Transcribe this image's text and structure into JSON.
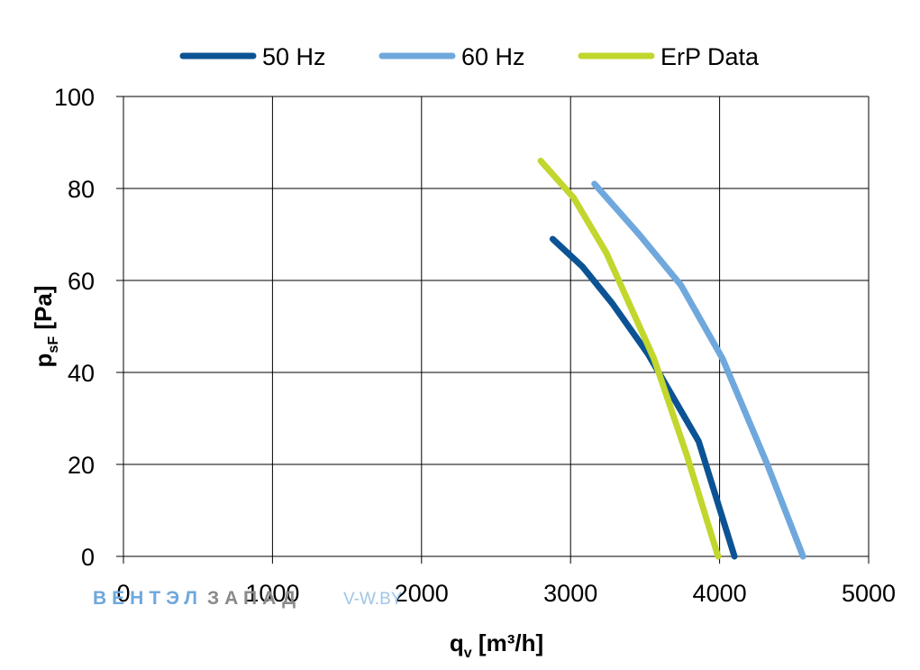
{
  "chart_data": {
    "type": "line",
    "title": "",
    "xlabel": {
      "main": "q",
      "sub": "v",
      "rest": " [m³/h]"
    },
    "ylabel": {
      "main": "p",
      "sub": "sF",
      "rest": " [Pa]"
    },
    "xlim": [
      0,
      5000
    ],
    "ylim": [
      0,
      100
    ],
    "xticks": [
      "0",
      "1000",
      "2000",
      "3000",
      "4000",
      "5000"
    ],
    "yticks": [
      "0",
      "20",
      "40",
      "60",
      "80",
      "100"
    ],
    "grid": true,
    "legend_position": "top",
    "series": [
      {
        "name": "50 Hz",
        "color": "#0b5394",
        "x": [
          2880,
          3080,
          3280,
          3520,
          3860,
          4100
        ],
        "y": [
          69,
          63,
          55,
          44,
          25,
          0
        ]
      },
      {
        "name": "60 Hz",
        "color": "#6fa8dc",
        "x": [
          3160,
          3460,
          3740,
          4020,
          4320,
          4560
        ],
        "y": [
          81,
          70,
          59,
          43,
          20,
          0
        ]
      },
      {
        "name": "ErP Data",
        "color": "#c2d62d",
        "x": [
          2800,
          3020,
          3240,
          3560,
          3780,
          3990
        ],
        "y": [
          86,
          78,
          66,
          43,
          22,
          0
        ]
      }
    ]
  },
  "watermark": {
    "part1": "ВЕНТЭЛ",
    "part2": "ЗАПАД",
    "part3": "V-W.BY",
    "color1": "#6fa8dc",
    "color2": "#8a8a8a",
    "color3": "#9fc5e8"
  }
}
